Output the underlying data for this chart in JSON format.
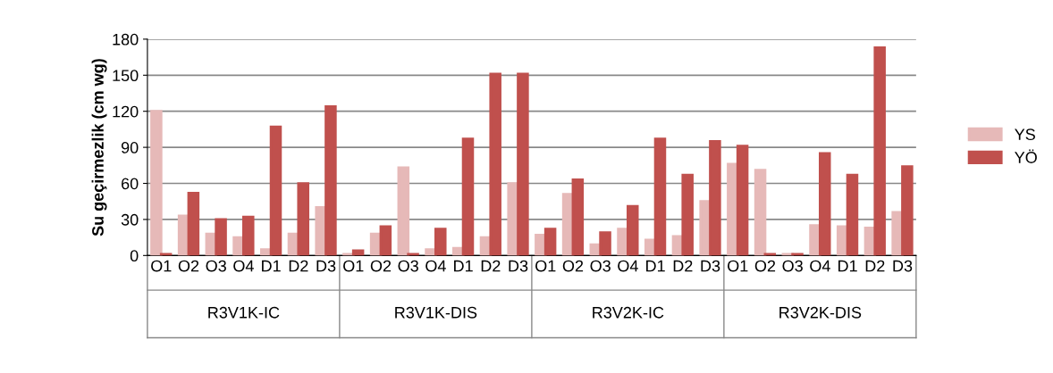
{
  "chart_data": {
    "type": "bar",
    "ylabel": "Su geçirmezlik (cm wg)",
    "categories": [
      "O1",
      "O2",
      "O3",
      "O4",
      "D1",
      "D2",
      "D3",
      "O1",
      "O2",
      "O3",
      "O4",
      "D1",
      "D2",
      "D3",
      "O1",
      "O2",
      "O3",
      "O4",
      "D1",
      "D2",
      "D3",
      "O1",
      "O2",
      "O3",
      "O4",
      "D1",
      "D2",
      "D3"
    ],
    "annotations": [
      "R3V1K-IC",
      "R3V1K-DIS",
      "R3V2K-IC",
      "R3V2K-DIS"
    ],
    "series": [
      {
        "name": "YS",
        "color": "#e6b9b8",
        "values": [
          120,
          33,
          18,
          15,
          5,
          18,
          40,
          1,
          18,
          73,
          5,
          6,
          15,
          60,
          17,
          51,
          9,
          22,
          13,
          16,
          45,
          76,
          71,
          1,
          25,
          24,
          23,
          36
        ]
      },
      {
        "name": "YÖ",
        "color": "#c0504d",
        "values": [
          1,
          52,
          30,
          32,
          107,
          60,
          124,
          4,
          24,
          1,
          22,
          97,
          151,
          151,
          22,
          63,
          19,
          41,
          97,
          67,
          95,
          91,
          1,
          1,
          85,
          67,
          173,
          74
        ]
      }
    ],
    "ylim": [
      0,
      180
    ],
    "yticks": [
      0,
      30,
      60,
      90,
      120,
      150,
      180
    ],
    "grid": "y",
    "legend": "right"
  }
}
